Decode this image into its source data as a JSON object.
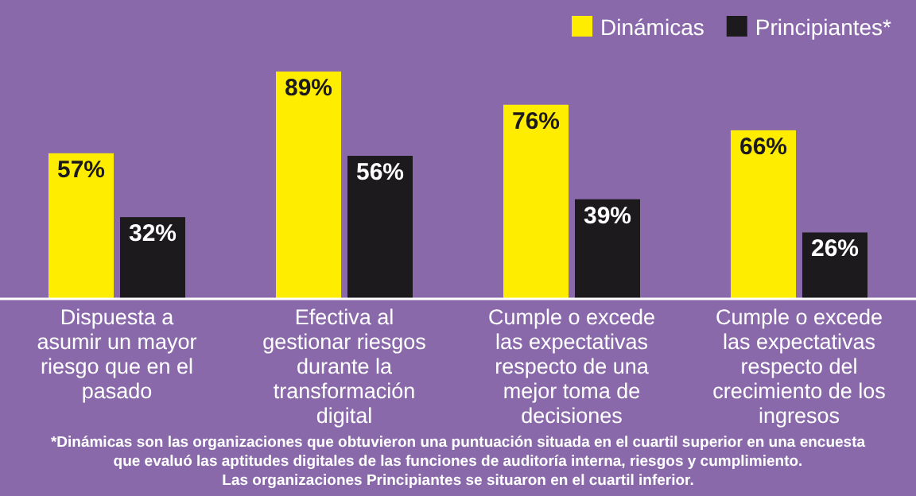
{
  "chart_data": {
    "type": "bar",
    "categories": [
      "Dispuesta a asumir un mayor riesgo que en el pasado",
      "Efectiva al gestionar riesgos durante la transformación digital",
      "Cumple o excede las expectativas respecto de una mejor toma de decisiones",
      "Cumple o excede las expectativas respecto del crecimiento de los ingresos"
    ],
    "series": [
      {
        "name": "Dinámicas",
        "color": "#ffed00",
        "values": [
          57,
          89,
          76,
          66
        ],
        "value_labels": [
          "57%",
          "89%",
          "76%",
          "66%"
        ]
      },
      {
        "name": "Principiantes*",
        "color": "#1c1a1c",
        "values": [
          32,
          56,
          39,
          26
        ],
        "value_labels": [
          "32%",
          "56%",
          "39%",
          "26%"
        ]
      }
    ],
    "legend": "top",
    "annotations": [
      "*Dinámicas son las organizaciones que obtuvieron una puntuación situada en el cuartil superior en una encuesta que evaluó las aptitudes digitales de las funciones de auditoría interna, riesgos y cumplimiento.",
      "Las organizaciones Principiantes se situaron en el cuartil inferior."
    ]
  }
}
